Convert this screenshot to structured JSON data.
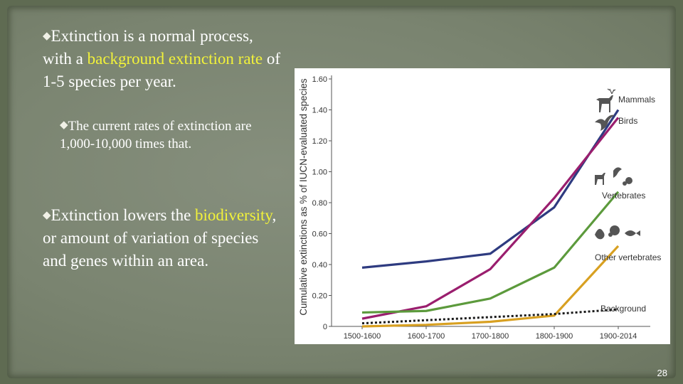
{
  "slide": {
    "bullet_glyph": "◆",
    "bullet1": {
      "part1": "Extinction is a normal process, with a ",
      "highlight": "background extinction rate",
      "part2": " of 1-5 species per year."
    },
    "bullet2": {
      "text": "The current rates of extinction are 1,000-10,000 times that."
    },
    "bullet3": {
      "part1": "Extinction lowers the ",
      "highlight": "biodiversity",
      "part2": ", or amount of variation of species and genes within an area."
    },
    "page_number": "28",
    "highlight_color": "#f2f23a"
  },
  "chart_data": {
    "type": "line",
    "ylabel": "Cumulative extinctions as % of IUCN-evaluated species",
    "xlabel": "",
    "categories": [
      "1500-1600",
      "1600-1700",
      "1700-1800",
      "1800-1900",
      "1900-2014"
    ],
    "ylim": [
      0,
      1.6
    ],
    "yticks": [
      "0",
      "0.20",
      "0.40",
      "0.60",
      "0.80",
      "1.00",
      "1.20",
      "1.40",
      "1.60"
    ],
    "series": [
      {
        "name": "Mammals",
        "color": "#2e3b80",
        "style": "solid",
        "icon": "deer-icon",
        "values": [
          0.38,
          0.42,
          0.47,
          0.77,
          1.4
        ]
      },
      {
        "name": "Birds",
        "color": "#9a1e6e",
        "style": "solid",
        "icon": "bird-icon",
        "values": [
          0.05,
          0.13,
          0.37,
          0.83,
          1.35
        ]
      },
      {
        "name": "Vertebrates",
        "color": "#5c9a3c",
        "style": "solid",
        "icon": "animals-icon",
        "values": [
          0.09,
          0.1,
          0.18,
          0.38,
          0.87
        ]
      },
      {
        "name": "Other vertebrates",
        "color": "#d8a021",
        "style": "solid",
        "icon": "reptile-frog-fish-icon",
        "values": [
          0.0,
          0.01,
          0.03,
          0.07,
          0.52
        ]
      },
      {
        "name": "Background",
        "color": "#1a1a1a",
        "style": "dotted",
        "icon": "",
        "values": [
          0.02,
          0.04,
          0.06,
          0.08,
          0.11
        ]
      }
    ],
    "grid": false,
    "legend": "labels at right end of lines"
  }
}
